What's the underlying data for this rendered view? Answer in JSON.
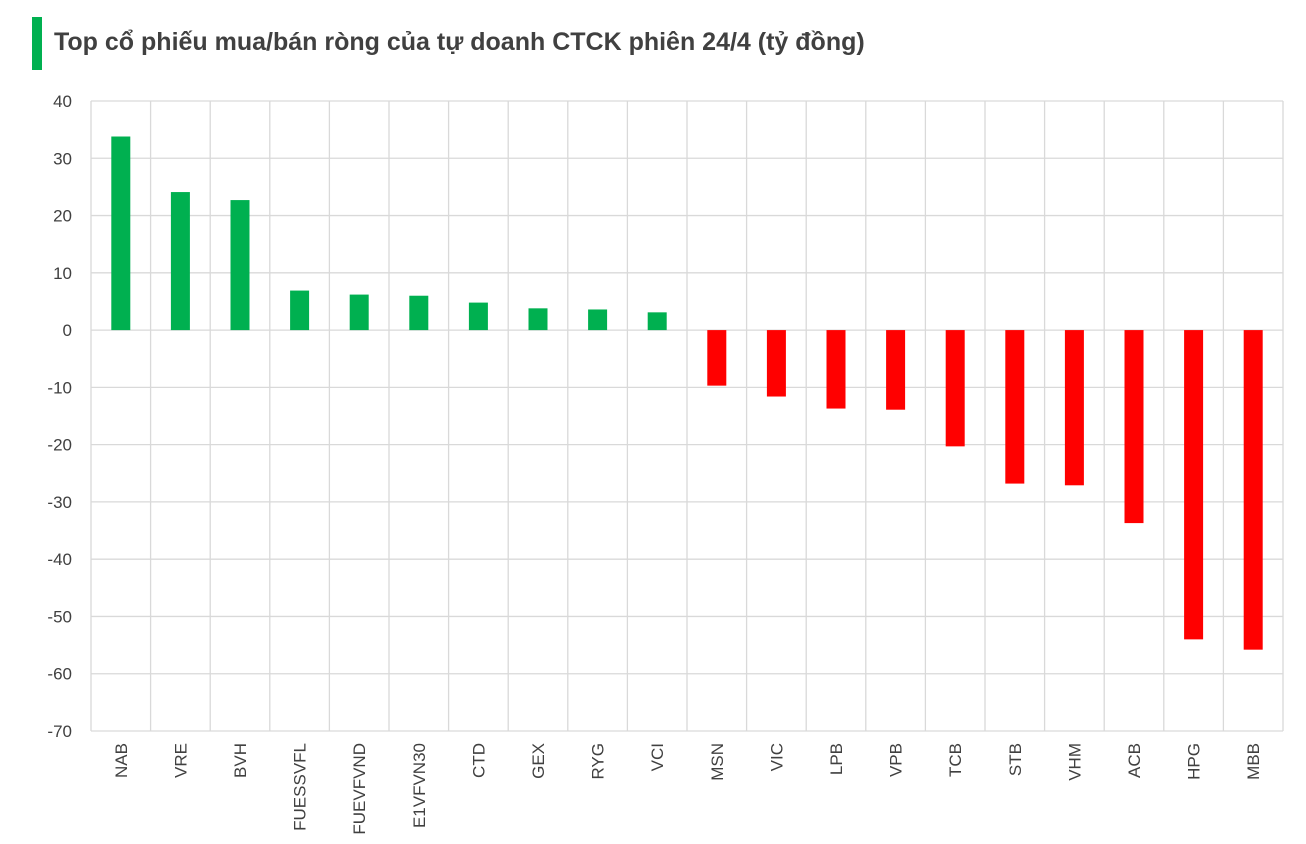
{
  "title": "Top cổ phiếu mua/bán ròng của tự doanh CTCK phiên 24/4 (tỷ đồng)",
  "colors": {
    "positive": "#00b050",
    "negative": "#ff0000",
    "grid": "#d9d9d9",
    "title_accent": "#00b050"
  },
  "chart_data": {
    "type": "bar",
    "title": "Top cổ phiếu mua/bán ròng của tự doanh CTCK phiên 24/4 (tỷ đồng)",
    "categories": [
      "NAB",
      "VRE",
      "BVH",
      "FUESSVFL",
      "FUEVFVND",
      "E1VFVN30",
      "CTD",
      "GEX",
      "RYG",
      "VCI",
      "MSN",
      "VIC",
      "LPB",
      "VPB",
      "TCB",
      "STB",
      "VHM",
      "ACB",
      "HPG",
      "MBB"
    ],
    "values": [
      33.8,
      24.1,
      22.7,
      6.9,
      6.2,
      6.0,
      4.8,
      3.8,
      3.6,
      3.1,
      -9.7,
      -11.6,
      -13.7,
      -13.9,
      -20.3,
      -26.8,
      -27.1,
      -33.7,
      -54.0,
      -55.8
    ],
    "ylim": [
      -70,
      40
    ],
    "yticks": [
      40,
      30,
      20,
      10,
      0,
      -10,
      -20,
      -30,
      -40,
      -50,
      -60,
      -70
    ],
    "xlabel": "",
    "ylabel": "",
    "grid": true,
    "legend": "none"
  }
}
